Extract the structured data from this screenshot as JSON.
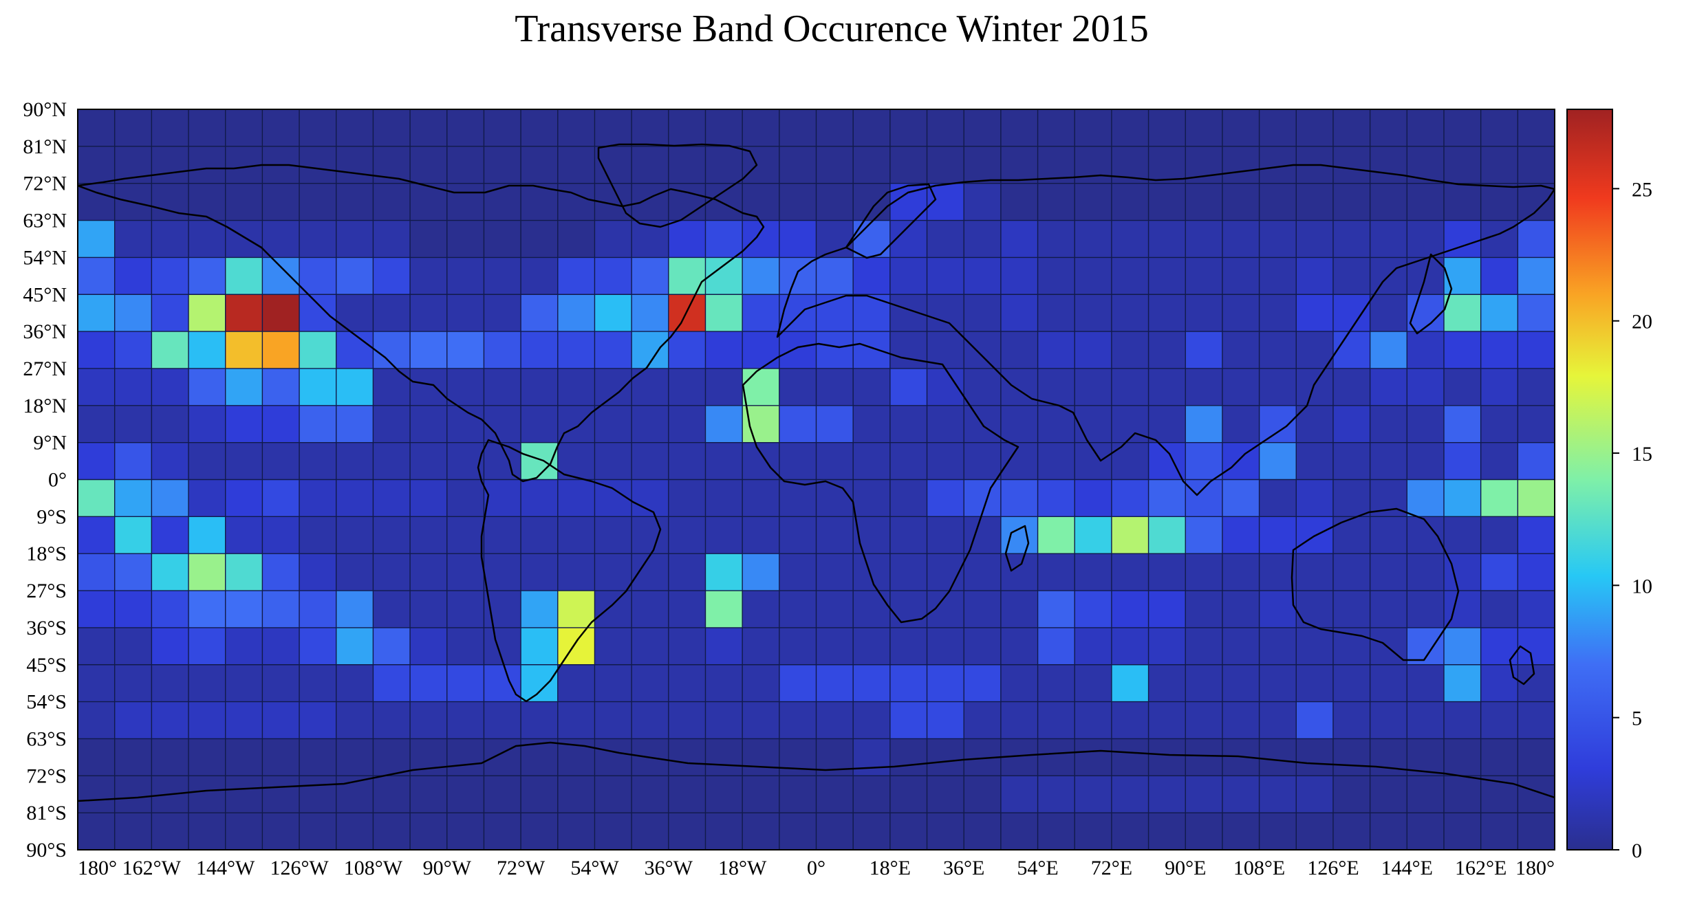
{
  "chart_data": {
    "type": "heatmap",
    "title": "Transverse Band Occurence Winter 2015",
    "xlabel": "",
    "ylabel": "",
    "x_ticks": [
      "180°",
      "162°W",
      "144°W",
      "126°W",
      "108°W",
      "90°W",
      "72°W",
      "54°W",
      "36°W",
      "18°W",
      "0°",
      "18°E",
      "36°E",
      "54°E",
      "72°E",
      "90°E",
      "108°E",
      "126°E",
      "144°E",
      "162°E",
      "180°"
    ],
    "y_ticks": [
      "90°N",
      "81°N",
      "72°N",
      "63°N",
      "54°N",
      "45°N",
      "36°N",
      "27°N",
      "18°N",
      "9°N",
      "0°",
      "9°S",
      "18°S",
      "27°S",
      "36°S",
      "45°S",
      "54°S",
      "63°S",
      "72°S",
      "81°S",
      "90°S"
    ],
    "xlim": [
      -180,
      180
    ],
    "ylim": [
      -90,
      90
    ],
    "cell_lon_deg": 9,
    "cell_lat_deg": 9,
    "colorbar": {
      "min": 0,
      "max": 28,
      "ticks": [
        "0",
        "5",
        "10",
        "15",
        "20",
        "25"
      ],
      "tick_values": [
        0,
        5,
        10,
        15,
        20,
        25
      ],
      "colormap": "jet"
    },
    "grid": true,
    "rows_note": "rows from 90N (top) to 90S (bottom); columns from 180 W to 180 E",
    "values": [
      [
        0,
        0,
        0,
        0,
        0,
        0,
        0,
        0,
        0,
        0,
        0,
        0,
        0,
        0,
        0,
        0,
        0,
        0,
        0,
        0,
        0,
        0,
        0,
        0,
        0,
        0,
        0,
        0,
        0,
        0,
        0,
        0,
        0,
        0,
        0,
        0,
        0,
        0,
        0,
        0
      ],
      [
        0,
        0,
        0,
        0,
        0,
        0,
        0,
        0,
        0,
        0,
        0,
        0,
        0,
        0,
        0,
        0,
        0,
        0,
        0,
        0,
        0,
        0,
        0,
        0,
        0,
        0,
        0,
        0,
        0,
        0,
        0,
        0,
        0,
        0,
        0,
        0,
        0,
        0,
        0,
        0
      ],
      [
        0,
        0,
        0,
        0,
        0,
        0,
        0,
        0,
        0,
        0,
        0,
        0,
        0,
        0,
        0,
        0,
        0,
        0,
        0,
        0,
        0,
        0,
        3,
        3,
        1,
        0,
        0,
        0,
        0,
        0,
        0,
        0,
        0,
        0,
        0,
        0,
        0,
        0,
        0,
        0
      ],
      [
        9,
        1,
        1,
        1,
        1,
        1,
        1,
        1,
        1,
        0,
        0,
        0,
        0,
        0,
        1,
        1,
        3,
        4,
        3,
        3,
        1,
        6,
        2,
        1,
        1,
        2,
        1,
        1,
        1,
        1,
        1,
        1,
        1,
        1,
        1,
        1,
        1,
        3,
        1,
        5
      ],
      [
        6,
        3,
        4,
        6,
        12,
        8,
        5,
        6,
        4,
        1,
        1,
        1,
        1,
        4,
        4,
        6,
        13,
        12,
        8,
        6,
        6,
        3,
        2,
        2,
        2,
        2,
        1,
        1,
        1,
        1,
        1,
        1,
        1,
        2,
        1,
        1,
        1,
        9,
        3,
        8
      ],
      [
        9,
        8,
        4,
        16,
        27,
        28,
        4,
        1,
        1,
        1,
        1,
        1,
        6,
        8,
        10,
        8,
        26,
        13,
        4,
        4,
        4,
        4,
        1,
        1,
        1,
        2,
        1,
        1,
        1,
        1,
        1,
        1,
        1,
        3,
        3,
        1,
        5,
        13,
        9,
        6
      ],
      [
        3,
        4,
        13,
        10,
        20,
        21,
        12,
        4,
        6,
        7,
        7,
        5,
        4,
        4,
        4,
        9,
        4,
        3,
        3,
        3,
        4,
        4,
        1,
        1,
        1,
        1,
        2,
        2,
        1,
        1,
        4,
        1,
        1,
        1,
        4,
        8,
        2,
        3,
        3,
        3
      ],
      [
        2,
        2,
        2,
        6,
        9,
        6,
        10,
        10,
        1,
        1,
        1,
        1,
        1,
        1,
        1,
        1,
        1,
        1,
        14,
        1,
        1,
        1,
        4,
        2,
        1,
        1,
        1,
        1,
        1,
        1,
        1,
        1,
        1,
        1,
        1,
        2,
        2,
        1,
        2,
        1
      ],
      [
        1,
        1,
        1,
        2,
        3,
        3,
        6,
        6,
        1,
        1,
        1,
        1,
        1,
        1,
        1,
        1,
        1,
        8,
        15,
        5,
        5,
        1,
        1,
        1,
        1,
        1,
        1,
        1,
        1,
        1,
        8,
        1,
        5,
        1,
        2,
        1,
        1,
        6,
        1,
        1
      ],
      [
        3,
        5,
        2,
        1,
        1,
        1,
        1,
        1,
        1,
        1,
        1,
        1,
        13,
        1,
        1,
        1,
        1,
        1,
        1,
        1,
        1,
        1,
        1,
        1,
        1,
        1,
        1,
        1,
        1,
        3,
        5,
        3,
        8,
        1,
        1,
        1,
        1,
        4,
        1,
        5
      ],
      [
        13,
        9,
        8,
        2,
        3,
        4,
        2,
        2,
        2,
        2,
        1,
        2,
        2,
        2,
        2,
        2,
        1,
        1,
        1,
        1,
        1,
        1,
        1,
        4,
        5,
        5,
        4,
        3,
        4,
        6,
        5,
        6,
        1,
        2,
        1,
        1,
        8,
        9,
        14,
        15
      ],
      [
        3,
        11,
        3,
        10,
        2,
        2,
        1,
        1,
        1,
        1,
        1,
        1,
        1,
        1,
        1,
        1,
        1,
        1,
        1,
        1,
        1,
        1,
        1,
        1,
        1,
        8,
        14,
        11,
        16,
        12,
        6,
        3,
        3,
        3,
        1,
        1,
        1,
        1,
        1,
        3
      ],
      [
        5,
        6,
        11,
        15,
        12,
        5,
        2,
        1,
        1,
        1,
        1,
        1,
        1,
        1,
        1,
        1,
        1,
        11,
        8,
        1,
        1,
        1,
        1,
        1,
        1,
        1,
        1,
        1,
        1,
        1,
        1,
        1,
        1,
        1,
        1,
        1,
        1,
        2,
        4,
        3
      ],
      [
        3,
        3,
        4,
        7,
        7,
        6,
        5,
        8,
        1,
        1,
        1,
        1,
        9,
        17,
        1,
        1,
        1,
        14,
        1,
        1,
        1,
        1,
        1,
        1,
        1,
        1,
        6,
        4,
        3,
        3,
        1,
        1,
        2,
        1,
        1,
        1,
        1,
        2,
        1,
        2
      ],
      [
        1,
        1,
        3,
        4,
        2,
        2,
        4,
        9,
        6,
        2,
        1,
        1,
        10,
        18,
        1,
        1,
        1,
        2,
        1,
        1,
        1,
        1,
        1,
        1,
        1,
        1,
        5,
        2,
        2,
        2,
        1,
        1,
        1,
        1,
        1,
        1,
        6,
        8,
        3,
        3
      ],
      [
        1,
        1,
        1,
        1,
        1,
        1,
        1,
        1,
        4,
        4,
        4,
        4,
        10,
        1,
        1,
        1,
        1,
        1,
        1,
        4,
        4,
        4,
        4,
        4,
        4,
        1,
        1,
        1,
        10,
        1,
        1,
        1,
        1,
        1,
        1,
        1,
        1,
        9,
        2,
        1
      ],
      [
        1,
        2,
        2,
        2,
        2,
        2,
        2,
        1,
        1,
        1,
        1,
        1,
        1,
        1,
        1,
        1,
        1,
        1,
        1,
        1,
        1,
        1,
        4,
        4,
        1,
        1,
        1,
        1,
        1,
        1,
        1,
        1,
        1,
        5,
        1,
        1,
        1,
        1,
        1,
        1
      ],
      [
        0,
        0,
        0,
        0,
        0,
        0,
        0,
        0,
        0,
        0,
        0,
        0,
        0,
        0,
        0,
        0,
        0,
        0,
        0,
        0,
        0,
        1,
        0,
        0,
        0,
        0,
        0,
        0,
        0,
        0,
        0,
        0,
        0,
        0,
        0,
        0,
        0,
        0,
        0,
        0
      ],
      [
        0,
        0,
        0,
        0,
        0,
        0,
        0,
        0,
        0,
        0,
        0,
        0,
        0,
        0,
        0,
        0,
        0,
        0,
        0,
        0,
        0,
        0,
        0,
        0,
        0,
        1,
        1,
        1,
        1,
        1,
        1,
        1,
        1,
        1,
        0,
        0,
        0,
        0,
        0,
        0
      ],
      [
        0,
        0,
        0,
        0,
        0,
        0,
        0,
        0,
        0,
        0,
        0,
        0,
        0,
        0,
        0,
        0,
        0,
        0,
        0,
        0,
        0,
        0,
        0,
        0,
        0,
        0,
        0,
        0,
        0,
        0,
        0,
        0,
        0,
        0,
        0,
        0,
        0,
        0,
        0,
        0
      ]
    ]
  }
}
